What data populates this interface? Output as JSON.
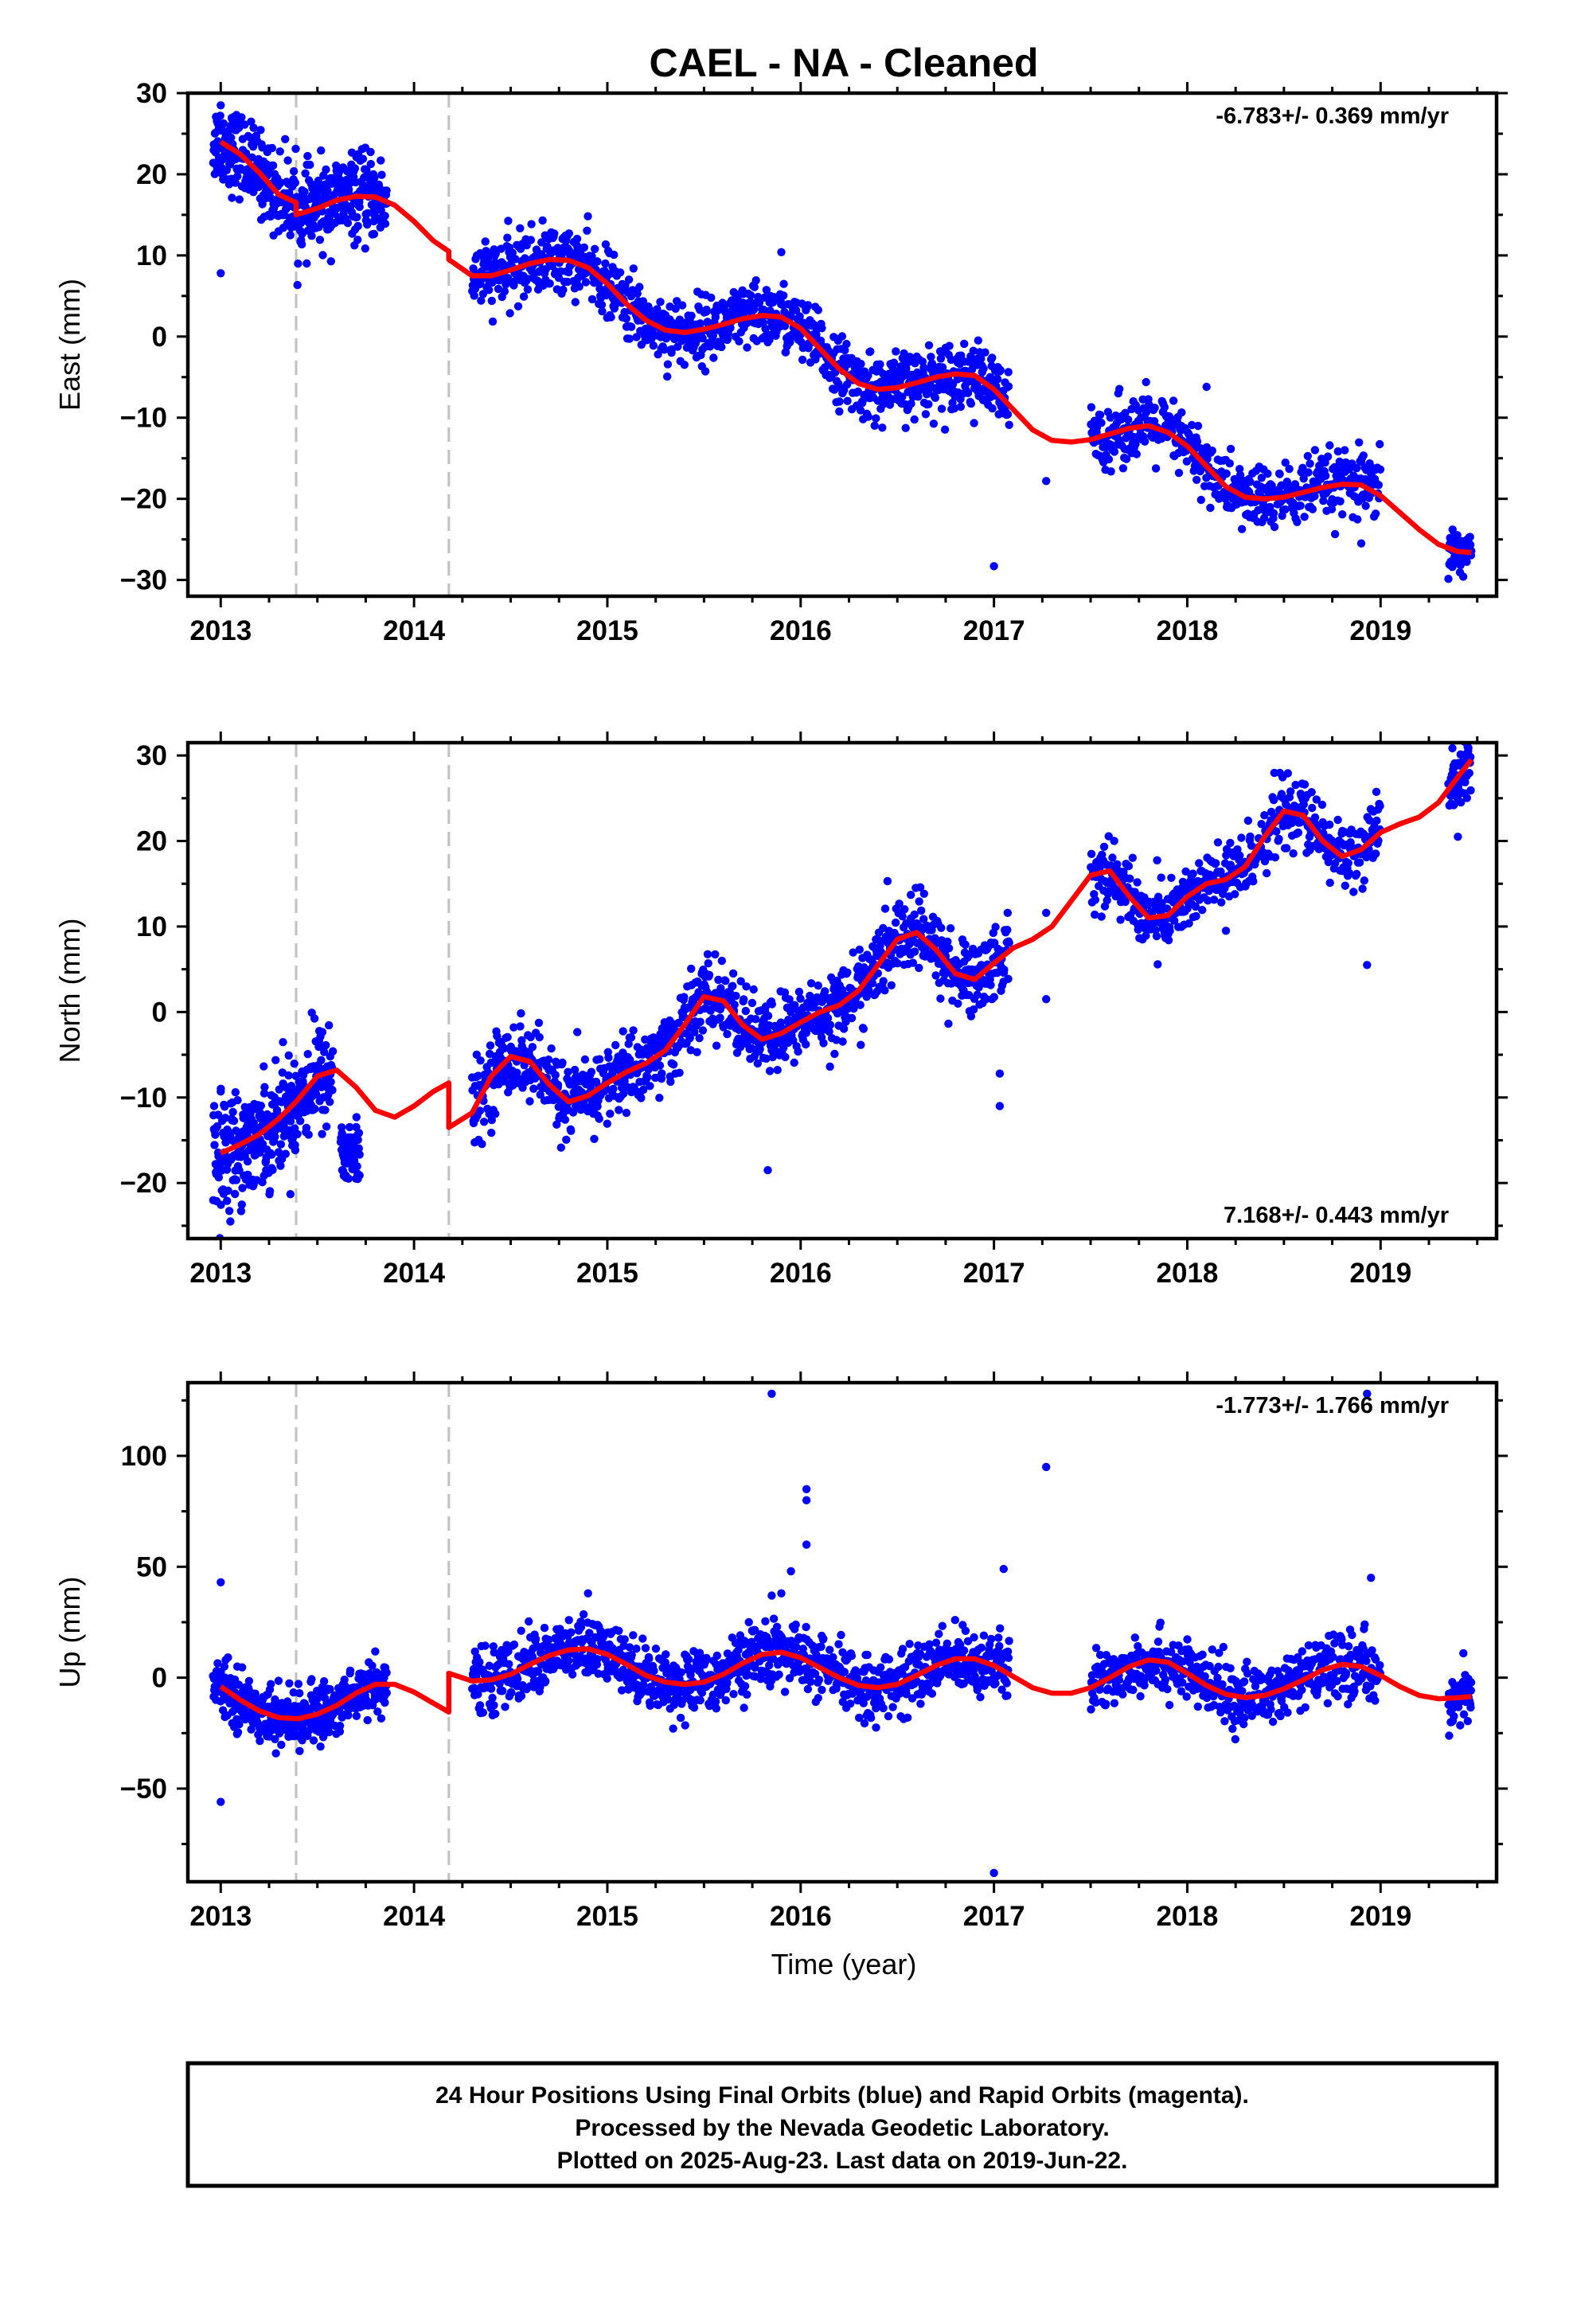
{
  "title": "CAEL  - NA - Cleaned",
  "xlabel": "Time (year)",
  "footer": [
    "24 Hour Positions Using Final Orbits (blue) and Rapid Orbits (magenta).",
    "Processed by the Nevada Geodetic Laboratory.",
    "Plotted on 2025-Aug-23. Last data on 2019-Jun-22."
  ],
  "colors": {
    "points": "#0000ff",
    "model": "#ff0000",
    "breaks": "#c0c0c0"
  },
  "chart_data": [
    {
      "type": "scatter",
      "title": "",
      "xlabel": "Time (year)",
      "ylabel": "East (mm)",
      "xlim": [
        2012.83,
        2019.6
      ],
      "ylim": [
        -32,
        30
      ],
      "xticks": [
        "2013",
        "2014",
        "2015",
        "2016",
        "2017",
        "2018",
        "2019"
      ],
      "yticks": [
        -30,
        -20,
        -10,
        0,
        10,
        20,
        30
      ],
      "yticklabels": [
        "−30",
        "−20",
        "−10",
        "0",
        "10",
        "20",
        "30"
      ],
      "rate_label": "-6.783+/- 0.369 mm/yr",
      "rate_label_pos": "top-right",
      "equipment_breaks": [
        2013.39,
        2014.18
      ],
      "gaps": [
        [
          2013.86,
          2014.2
        ],
        [
          2017.08,
          2017.5
        ],
        [
          2019.0,
          2019.35
        ]
      ],
      "model_x": [
        2013.0,
        2013.1,
        2013.2,
        2013.3,
        2013.39,
        2013.39,
        2013.5,
        2013.6,
        2013.7,
        2013.8,
        2013.9,
        2014.0,
        2014.1,
        2014.18,
        2014.18,
        2014.3,
        2014.4,
        2014.5,
        2014.6,
        2014.7,
        2014.8,
        2014.9,
        2015.0,
        2015.1,
        2015.2,
        2015.3,
        2015.4,
        2015.5,
        2015.6,
        2015.7,
        2015.8,
        2015.9,
        2016.0,
        2016.1,
        2016.2,
        2016.3,
        2016.4,
        2016.5,
        2016.6,
        2016.7,
        2016.8,
        2016.9,
        2017.0,
        2017.1,
        2017.2,
        2017.3,
        2017.4,
        2017.5,
        2017.6,
        2017.7,
        2017.8,
        2017.9,
        2018.0,
        2018.1,
        2018.2,
        2018.3,
        2018.4,
        2018.5,
        2018.6,
        2018.7,
        2018.8,
        2018.9,
        2019.0,
        2019.1,
        2019.2,
        2019.3,
        2019.4,
        2019.47
      ],
      "model_y": [
        24,
        22.5,
        20.2,
        17.5,
        16.5,
        15,
        15.8,
        16.8,
        17.3,
        17.2,
        16.2,
        14.2,
        11.8,
        10.5,
        9.5,
        7.5,
        7.5,
        8.2,
        9,
        9.5,
        9.4,
        8.5,
        6.5,
        4,
        2,
        0.8,
        0.5,
        0.9,
        1.5,
        2.2,
        2.6,
        2.4,
        1,
        -1.5,
        -4,
        -5.8,
        -6.5,
        -6.3,
        -5.7,
        -5,
        -4.6,
        -4.8,
        -6.5,
        -9,
        -11.5,
        -12.8,
        -13,
        -12.7,
        -12,
        -11.3,
        -11,
        -11.8,
        -13.5,
        -16,
        -18.5,
        -19.8,
        -20,
        -19.8,
        -19.2,
        -18.6,
        -18.2,
        -18.3,
        -19.6,
        -21.7,
        -23.8,
        -25.6,
        -26.5,
        -26.6
      ],
      "outliers": [
        [
          2013.0,
          7.8
        ],
        [
          2013.0,
          28.5
        ],
        [
          2015.9,
          10.4
        ],
        [
          2017.0,
          -28.3
        ],
        [
          2017.27,
          -17.8
        ],
        [
          2018.1,
          -6.2
        ],
        [
          2018.9,
          -25.5
        ]
      ],
      "series": [
        {
          "name": "",
          "x_range": [
            2012.96,
            2013.86
          ],
          "trend": "model",
          "scatter": 2.5,
          "count": 480
        },
        {
          "name": "",
          "x_range": [
            2014.3,
            2017.08
          ],
          "trend": "model",
          "scatter": 2.0,
          "count": 1100
        },
        {
          "name": "",
          "x_range": [
            2017.5,
            2019.0
          ],
          "trend": "model",
          "scatter": 2.0,
          "count": 520
        },
        {
          "name": "",
          "x_range": [
            2019.35,
            2019.47
          ],
          "trend": "model",
          "scatter": 1.8,
          "count": 60
        }
      ]
    },
    {
      "type": "scatter",
      "title": "",
      "xlabel": "Time (year)",
      "ylabel": "North (mm)",
      "xlim": [
        2012.83,
        2019.6
      ],
      "ylim": [
        -26.5,
        31.5
      ],
      "xticks": [
        "2013",
        "2014",
        "2015",
        "2016",
        "2017",
        "2018",
        "2019"
      ],
      "yticks": [
        -20,
        -10,
        0,
        10,
        20,
        30
      ],
      "yticklabels": [
        "−20",
        "−10",
        "0",
        "10",
        "20",
        "30"
      ],
      "rate_label": "7.168+/- 0.443 mm/yr",
      "rate_label_pos": "bottom-right",
      "equipment_breaks": [
        2013.39,
        2014.18
      ],
      "gaps": [
        [
          2013.86,
          2014.2
        ],
        [
          2017.08,
          2017.5
        ],
        [
          2019.0,
          2019.35
        ]
      ],
      "model_x": [
        2013.0,
        2013.1,
        2013.2,
        2013.3,
        2013.39,
        2013.5,
        2013.6,
        2013.7,
        2013.8,
        2013.9,
        2014.0,
        2014.1,
        2014.18,
        2014.18,
        2014.3,
        2014.4,
        2014.5,
        2014.6,
        2014.7,
        2014.8,
        2014.9,
        2015.0,
        2015.1,
        2015.2,
        2015.3,
        2015.4,
        2015.5,
        2015.6,
        2015.7,
        2015.8,
        2015.9,
        2016.0,
        2016.1,
        2016.2,
        2016.3,
        2016.4,
        2016.5,
        2016.6,
        2016.7,
        2016.8,
        2016.9,
        2017.0,
        2017.1,
        2017.2,
        2017.3,
        2017.4,
        2017.5,
        2017.6,
        2017.7,
        2017.8,
        2017.9,
        2018.0,
        2018.1,
        2018.2,
        2018.3,
        2018.4,
        2018.5,
        2018.6,
        2018.7,
        2018.8,
        2018.9,
        2019.0,
        2019.1,
        2019.2,
        2019.3,
        2019.4,
        2019.47
      ],
      "model_y": [
        -16.5,
        -15.5,
        -14.3,
        -12.5,
        -10.5,
        -7.5,
        -6.8,
        -8.8,
        -11.5,
        -12.3,
        -11,
        -9.3,
        -8.3,
        -13.5,
        -11.8,
        -7.5,
        -5.2,
        -5.8,
        -8.5,
        -10.5,
        -9.8,
        -8.3,
        -7,
        -6,
        -4.5,
        -1.5,
        1.8,
        1.3,
        -1.5,
        -3.2,
        -2.5,
        -1.2,
        0,
        0.8,
        2.5,
        5.5,
        8.5,
        9.3,
        7.3,
        4.5,
        3.8,
        5.7,
        7.5,
        8.5,
        10,
        13,
        16,
        16.5,
        13.5,
        11,
        11.3,
        13.5,
        15,
        15.5,
        17,
        20.5,
        23.5,
        23,
        20,
        18.2,
        19,
        21,
        22,
        22.8,
        24.5,
        27.5,
        29.5
      ],
      "outliers": [
        [
          2013.0,
          -9.3
        ],
        [
          2013.05,
          -24.5
        ],
        [
          2015.83,
          -18.5
        ],
        [
          2016.57,
          13.7
        ],
        [
          2017.03,
          -11
        ],
        [
          2017.03,
          -7.2
        ],
        [
          2017.27,
          1.5
        ],
        [
          2017.27,
          11.6
        ],
        [
          2018.2,
          9.5
        ],
        [
          2018.93,
          5.5
        ],
        [
          2019.4,
          20.5
        ],
        [
          2019.45,
          31
        ]
      ],
      "series": [
        {
          "name": "",
          "x_range": [
            2012.96,
            2013.58
          ],
          "trend": "model",
          "scatter": 3.0,
          "count": 380
        },
        {
          "name": "",
          "x_range": [
            2013.62,
            2013.72
          ],
          "trend": "fixed",
          "level": -16.5,
          "scatter": 2.0,
          "count": 60
        },
        {
          "name": "",
          "x_range": [
            2014.3,
            2017.08
          ],
          "trend": "model",
          "scatter": 2.2,
          "count": 1100
        },
        {
          "name": "",
          "x_range": [
            2017.5,
            2019.0
          ],
          "trend": "model",
          "scatter": 2.0,
          "count": 520
        },
        {
          "name": "",
          "x_range": [
            2019.35,
            2019.47
          ],
          "trend": "model",
          "scatter": 1.8,
          "count": 60
        }
      ]
    },
    {
      "type": "scatter",
      "title": "",
      "xlabel": "Time (year)",
      "ylabel": "Up (mm)",
      "xlim": [
        2012.83,
        2019.6
      ],
      "ylim": [
        -92,
        133
      ],
      "xticks": [
        "2013",
        "2014",
        "2015",
        "2016",
        "2017",
        "2018",
        "2019"
      ],
      "yticks": [
        -50,
        0,
        50,
        100
      ],
      "yticklabels": [
        "−50",
        "0",
        "50",
        "100"
      ],
      "rate_label": "-1.773+/- 1.766 mm/yr",
      "rate_label_pos": "top-right",
      "equipment_breaks": [
        2013.39,
        2014.18
      ],
      "gaps": [
        [
          2013.86,
          2014.2
        ],
        [
          2017.08,
          2017.5
        ],
        [
          2019.0,
          2019.35
        ]
      ],
      "model_x": [
        2013.0,
        2013.1,
        2013.2,
        2013.3,
        2013.4,
        2013.5,
        2013.6,
        2013.7,
        2013.8,
        2013.9,
        2014.0,
        2014.1,
        2014.18,
        2014.18,
        2014.3,
        2014.4,
        2014.5,
        2014.6,
        2014.7,
        2014.8,
        2014.9,
        2015.0,
        2015.1,
        2015.2,
        2015.3,
        2015.4,
        2015.5,
        2015.6,
        2015.7,
        2015.8,
        2015.9,
        2016.0,
        2016.1,
        2016.2,
        2016.3,
        2016.4,
        2016.5,
        2016.6,
        2016.7,
        2016.8,
        2016.9,
        2017.0,
        2017.1,
        2017.2,
        2017.3,
        2017.4,
        2017.5,
        2017.6,
        2017.7,
        2017.8,
        2017.9,
        2018.0,
        2018.1,
        2018.2,
        2018.3,
        2018.4,
        2018.5,
        2018.6,
        2018.7,
        2018.8,
        2018.9,
        2019.0,
        2019.1,
        2019.2,
        2019.3,
        2019.4,
        2019.47
      ],
      "model_y": [
        -4,
        -10,
        -15,
        -18,
        -18.5,
        -16.5,
        -12.5,
        -7,
        -3,
        -3,
        -6.5,
        -11.5,
        -15.5,
        2,
        -1.5,
        -1,
        1.5,
        6,
        10,
        12.5,
        13,
        10.5,
        6,
        1,
        -2,
        -3,
        -2,
        1.5,
        6.5,
        10.5,
        11.5,
        9,
        4.5,
        0,
        -3.5,
        -4.5,
        -3,
        1,
        5.5,
        8.5,
        8.5,
        5.5,
        0.5,
        -4.5,
        -7,
        -7,
        -4.5,
        0,
        5,
        8,
        7,
        2,
        -3.5,
        -7.5,
        -9,
        -8,
        -5,
        -1,
        3.5,
        6,
        5,
        1,
        -4,
        -8,
        -9.5,
        -9,
        -8.5
      ],
      "outliers": [
        [
          2013.0,
          43
        ],
        [
          2013.0,
          -56
        ],
        [
          2014.9,
          38
        ],
        [
          2015.85,
          128
        ],
        [
          2015.85,
          37
        ],
        [
          2015.9,
          38
        ],
        [
          2015.95,
          48
        ],
        [
          2016.03,
          85
        ],
        [
          2016.03,
          80
        ],
        [
          2016.03,
          60
        ],
        [
          2017.0,
          -88
        ],
        [
          2017.05,
          49
        ],
        [
          2017.27,
          95
        ],
        [
          2018.95,
          45
        ],
        [
          2018.93,
          128
        ]
      ],
      "series": [
        {
          "name": "",
          "x_range": [
            2012.96,
            2013.86
          ],
          "trend": "model",
          "scatter": 6.0,
          "count": 480
        },
        {
          "name": "",
          "x_range": [
            2014.3,
            2017.08
          ],
          "trend": "model",
          "scatter": 7.0,
          "count": 1100
        },
        {
          "name": "",
          "x_range": [
            2017.5,
            2019.0
          ],
          "trend": "model",
          "scatter": 7.0,
          "count": 520
        },
        {
          "name": "",
          "x_range": [
            2019.35,
            2019.47
          ],
          "trend": "model",
          "scatter": 6.0,
          "count": 60
        }
      ]
    }
  ]
}
